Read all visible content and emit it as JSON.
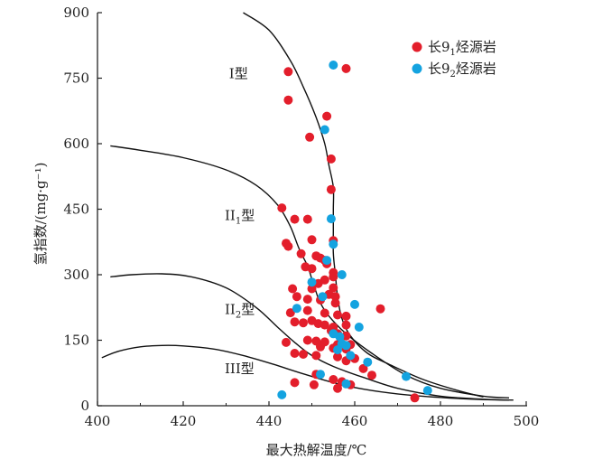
{
  "chart_data": {
    "type": "scatter",
    "xlabel": "最大热解温度/℃",
    "ylabel": "氢指数/(mg·g⁻¹)",
    "xlim": [
      400,
      500
    ],
    "ylim": [
      0,
      900
    ],
    "xticks": [
      400,
      420,
      440,
      460,
      480,
      500
    ],
    "yticks": [
      0,
      150,
      300,
      450,
      600,
      750,
      900
    ],
    "regions": [
      {
        "name": "I型",
        "main": "I",
        "sub": "",
        "suffix": "型",
        "at": [
          413,
          750
        ]
      },
      {
        "name": "II1型",
        "main": "II",
        "sub": "1",
        "suffix": "型",
        "at": [
          412,
          425
        ]
      },
      {
        "name": "II2型",
        "main": "II",
        "sub": "2",
        "suffix": "型",
        "at": [
          412,
          210
        ]
      },
      {
        "name": "III型",
        "main": "III",
        "sub": "",
        "suffix": "型",
        "at": [
          412,
          75
        ]
      }
    ],
    "boundaries": [
      {
        "name": "I-II1 boundary",
        "points": [
          [
            434,
            900
          ],
          [
            440,
            860
          ],
          [
            445,
            790
          ],
          [
            448,
            730
          ],
          [
            451,
            660
          ],
          [
            453,
            600
          ],
          [
            454,
            550
          ],
          [
            455,
            500
          ],
          [
            455,
            450
          ],
          [
            455,
            400
          ],
          [
            455,
            350
          ],
          [
            455.5,
            300
          ],
          [
            456,
            250
          ],
          [
            457,
            200
          ],
          [
            459,
            160
          ],
          [
            463,
            120
          ],
          [
            468,
            95
          ],
          [
            476,
            60
          ],
          [
            484,
            35
          ],
          [
            490,
            20
          ]
        ]
      },
      {
        "name": "II1-II2 boundary",
        "points": [
          [
            403,
            595
          ],
          [
            410,
            585
          ],
          [
            420,
            568
          ],
          [
            430,
            540
          ],
          [
            437,
            505
          ],
          [
            442,
            460
          ],
          [
            445,
            410
          ],
          [
            447,
            360
          ],
          [
            449,
            320
          ],
          [
            450,
            290
          ],
          [
            451,
            260
          ],
          [
            452,
            235
          ],
          [
            454,
            205
          ],
          [
            458,
            165
          ],
          [
            464,
            120
          ],
          [
            472,
            70
          ],
          [
            480,
            40
          ],
          [
            490,
            22
          ],
          [
            496,
            18
          ]
        ]
      },
      {
        "name": "II2-III boundary",
        "points": [
          [
            403,
            295
          ],
          [
            408,
            300
          ],
          [
            415,
            302
          ],
          [
            422,
            295
          ],
          [
            430,
            270
          ],
          [
            437,
            225
          ],
          [
            442,
            180
          ],
          [
            446,
            145
          ],
          [
            450,
            115
          ],
          [
            455,
            90
          ],
          [
            462,
            65
          ],
          [
            470,
            40
          ],
          [
            480,
            22
          ],
          [
            490,
            15
          ],
          [
            497,
            13
          ]
        ]
      },
      {
        "name": "III lower boundary",
        "points": [
          [
            401,
            110
          ],
          [
            405,
            125
          ],
          [
            410,
            135
          ],
          [
            415,
            138
          ],
          [
            420,
            137
          ],
          [
            427,
            130
          ],
          [
            434,
            115
          ],
          [
            441,
            95
          ],
          [
            448,
            73
          ],
          [
            455,
            53
          ],
          [
            462,
            38
          ],
          [
            470,
            27
          ],
          [
            480,
            19
          ],
          [
            490,
            14
          ],
          [
            496,
            13
          ]
        ]
      }
    ],
    "series": [
      {
        "name": "长9₁烃源岩",
        "label_main": "长9",
        "label_sub": "1",
        "label_suffix": "烃源岩",
        "color": "#e31e2b",
        "points": [
          [
            444.5,
            765
          ],
          [
            458,
            772
          ],
          [
            444.5,
            700
          ],
          [
            453.5,
            663
          ],
          [
            449.5,
            615
          ],
          [
            454.5,
            565
          ],
          [
            454.5,
            495
          ],
          [
            443,
            453
          ],
          [
            446,
            427
          ],
          [
            449,
            427
          ],
          [
            450,
            380
          ],
          [
            455,
            378
          ],
          [
            444,
            372
          ],
          [
            444.5,
            365
          ],
          [
            447.5,
            348
          ],
          [
            451,
            343
          ],
          [
            452,
            338
          ],
          [
            453,
            333
          ],
          [
            453.5,
            325
          ],
          [
            448.5,
            318
          ],
          [
            450,
            314
          ],
          [
            455,
            305
          ],
          [
            455,
            295
          ],
          [
            453,
            288
          ],
          [
            451.5,
            280
          ],
          [
            445.5,
            268
          ],
          [
            450,
            268
          ],
          [
            455,
            270
          ],
          [
            454,
            255
          ],
          [
            455.5,
            250
          ],
          [
            446.5,
            250
          ],
          [
            449,
            244
          ],
          [
            452,
            242
          ],
          [
            455.5,
            235
          ],
          [
            449,
            218
          ],
          [
            453,
            212
          ],
          [
            456,
            208
          ],
          [
            458,
            205
          ],
          [
            466,
            222
          ],
          [
            445,
            213
          ],
          [
            446,
            192
          ],
          [
            448,
            190
          ],
          [
            450,
            195
          ],
          [
            451.5,
            188
          ],
          [
            453,
            185
          ],
          [
            455,
            180
          ],
          [
            458,
            185
          ],
          [
            454.5,
            172
          ],
          [
            456,
            165
          ],
          [
            458,
            160
          ],
          [
            444,
            145
          ],
          [
            449,
            150
          ],
          [
            451,
            148
          ],
          [
            453,
            146
          ],
          [
            456,
            140
          ],
          [
            459,
            140
          ],
          [
            452,
            135
          ],
          [
            455,
            132
          ],
          [
            458,
            130
          ],
          [
            446,
            120
          ],
          [
            448,
            118
          ],
          [
            451,
            115
          ],
          [
            456,
            112
          ],
          [
            460,
            108
          ],
          [
            458,
            103
          ],
          [
            462,
            85
          ],
          [
            464,
            70
          ],
          [
            451,
            72
          ],
          [
            455,
            60
          ],
          [
            457,
            55
          ],
          [
            446,
            53
          ],
          [
            450.5,
            48
          ],
          [
            459,
            48
          ],
          [
            456,
            40
          ],
          [
            474,
            18
          ]
        ]
      },
      {
        "name": "长9₂烃源岩",
        "label_main": "长9",
        "label_sub": "2",
        "label_suffix": "烃源岩",
        "color": "#14a3e0",
        "points": [
          [
            455,
            780
          ],
          [
            453,
            632
          ],
          [
            454.5,
            428
          ],
          [
            455,
            370
          ],
          [
            453.5,
            333
          ],
          [
            457,
            300
          ],
          [
            450,
            283
          ],
          [
            452.5,
            250
          ],
          [
            460,
            232
          ],
          [
            446.5,
            223
          ],
          [
            461,
            180
          ],
          [
            455,
            165
          ],
          [
            456.5,
            158
          ],
          [
            457,
            142
          ],
          [
            458,
            138
          ],
          [
            456,
            128
          ],
          [
            459,
            115
          ],
          [
            463,
            100
          ],
          [
            472,
            67
          ],
          [
            477,
            35
          ],
          [
            452,
            72
          ],
          [
            458,
            50
          ],
          [
            443,
            25
          ]
        ]
      }
    ]
  }
}
